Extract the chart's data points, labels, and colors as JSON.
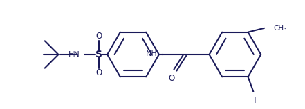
{
  "bg_color": "#ffffff",
  "line_color": "#1a1a5a",
  "line_width": 1.5,
  "figsize": [
    4.41,
    1.58
  ],
  "dpi": 100,
  "xlim": [
    0,
    441
  ],
  "ylim": [
    0,
    158
  ]
}
